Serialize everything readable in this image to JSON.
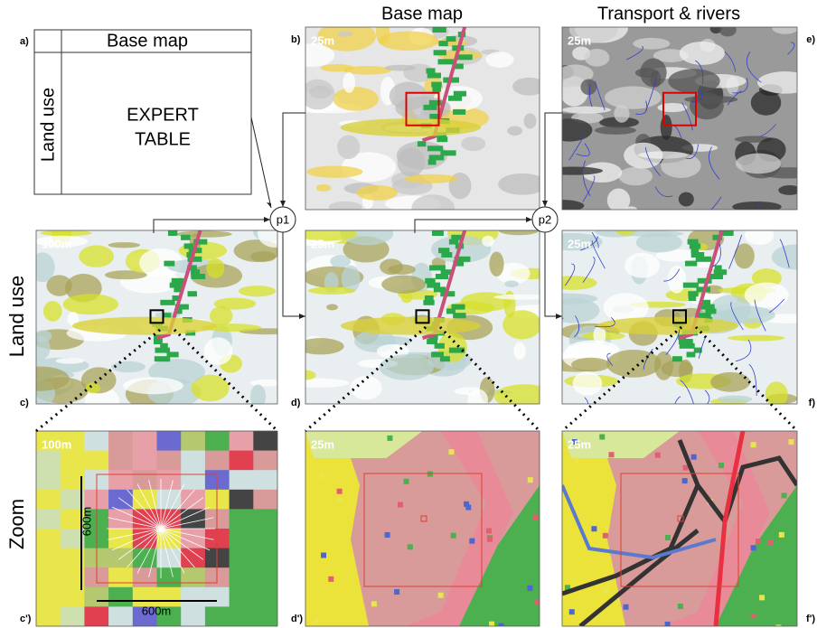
{
  "columns": [
    "Base map",
    "Transport & rivers"
  ],
  "rows": [
    "Land use",
    "Zoom"
  ],
  "expert_table": {
    "label": "a)",
    "column_header": "Base map",
    "row_header": "Land use",
    "body": [
      "EXPERT",
      "TABLE"
    ]
  },
  "nodes": [
    "p1",
    "p2"
  ],
  "panels": [
    {
      "label": "b)",
      "resolution": "25m"
    },
    {
      "label": "e)",
      "resolution": "25m"
    },
    {
      "label": "c)",
      "resolution": "100m"
    },
    {
      "label": "d)",
      "resolution": "25m"
    },
    {
      "label": "f)",
      "resolution": "25m"
    },
    {
      "label": "c')",
      "resolution": "100m"
    },
    {
      "label": "d')",
      "resolution": "25m"
    },
    {
      "label": "f')",
      "resolution": "25m"
    }
  ],
  "zoom_scale": [
    "600m",
    "600m"
  ]
}
